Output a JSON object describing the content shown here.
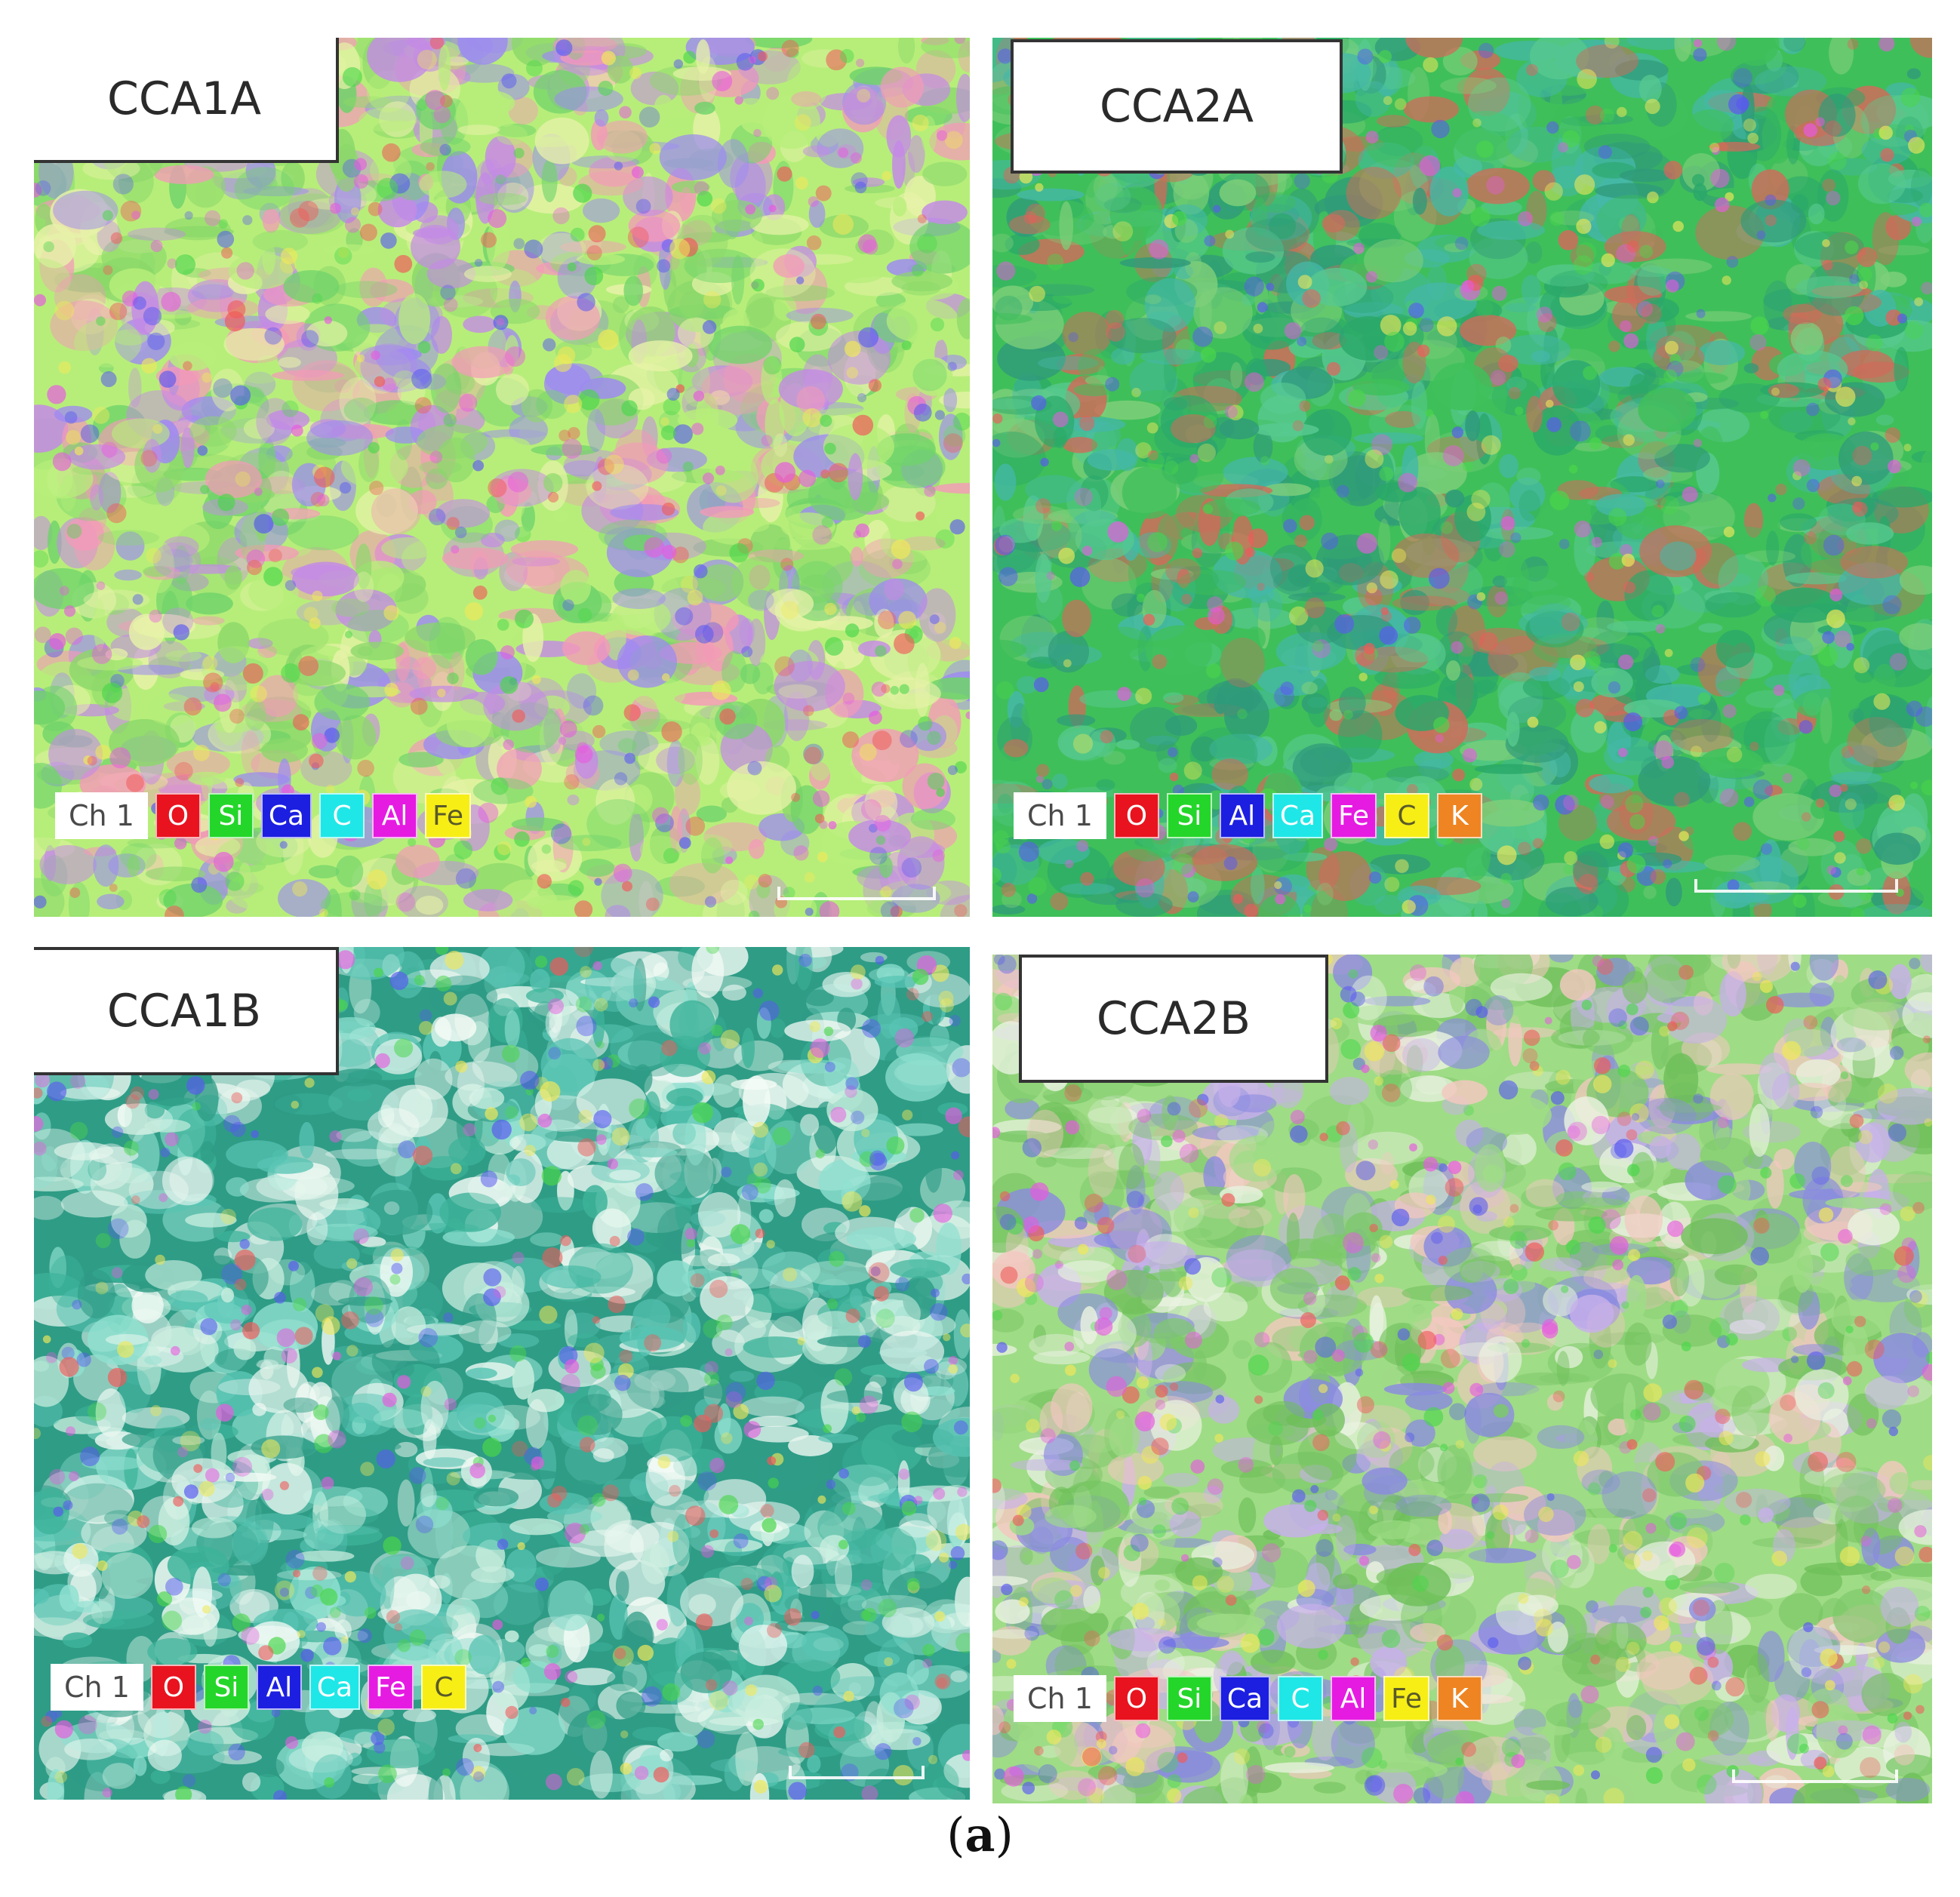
{
  "panels": [
    {
      "id": "p1",
      "title": "CCA1A",
      "legend_channel": "Ch 1",
      "legend": [
        {
          "label": "O",
          "bg": "#e8131f",
          "fg": "#ffffff"
        },
        {
          "label": "Si",
          "bg": "#24d62a",
          "fg": "#ffffff"
        },
        {
          "label": "Ca",
          "bg": "#1c1fe0",
          "fg": "#ffffff"
        },
        {
          "label": "C",
          "bg": "#1fe7e7",
          "fg": "#ffffff"
        },
        {
          "label": "Al",
          "bg": "#e51be2",
          "fg": "#ffffff"
        },
        {
          "label": "Fe",
          "bg": "#f7ee16",
          "fg": "#5a5a2a"
        }
      ],
      "palette": [
        "#b7ee7a",
        "#8bd86a",
        "#c48ae6",
        "#f49ab8",
        "#9d8af2",
        "#e7f2a8",
        "#6fd36a"
      ]
    },
    {
      "id": "p2",
      "title": "CCA2A",
      "legend_channel": "Ch 1",
      "legend": [
        {
          "label": "O",
          "bg": "#e8131f",
          "fg": "#ffffff"
        },
        {
          "label": "Si",
          "bg": "#24d62a",
          "fg": "#ffffff"
        },
        {
          "label": "Al",
          "bg": "#1c1fe0",
          "fg": "#ffffff"
        },
        {
          "label": "Ca",
          "bg": "#1fe7e7",
          "fg": "#ffffff"
        },
        {
          "label": "Fe",
          "bg": "#e51be2",
          "fg": "#ffffff"
        },
        {
          "label": "C",
          "bg": "#f7ee16",
          "fg": "#5a5a2a"
        },
        {
          "label": "K",
          "bg": "#ee8522",
          "fg": "#ffffff"
        }
      ],
      "palette": [
        "#3fbf5a",
        "#2aa86a",
        "#57c98f",
        "#45b8a8",
        "#7ecf7a",
        "#2f9a7a",
        "#d06b5a"
      ]
    },
    {
      "id": "p3",
      "title": "CCA1B",
      "legend_channel": "Ch 1",
      "legend": [
        {
          "label": "O",
          "bg": "#e8131f",
          "fg": "#ffffff"
        },
        {
          "label": "Si",
          "bg": "#24d62a",
          "fg": "#ffffff"
        },
        {
          "label": "Al",
          "bg": "#1c1fe0",
          "fg": "#ffffff"
        },
        {
          "label": "Ca",
          "bg": "#1fe7e7",
          "fg": "#ffffff"
        },
        {
          "label": "Fe",
          "bg": "#e51be2",
          "fg": "#ffffff"
        },
        {
          "label": "C",
          "bg": "#f7ee16",
          "fg": "#5a5a2a"
        }
      ],
      "palette": [
        "#2f9c86",
        "#3db39a",
        "#58c4b3",
        "#8fe0d0",
        "#e8f7ef",
        "#f4fbf6",
        "#c9eedf"
      ]
    },
    {
      "id": "p4",
      "title": "CCA2B",
      "legend_channel": "Ch 1",
      "legend": [
        {
          "label": "O",
          "bg": "#e8131f",
          "fg": "#ffffff"
        },
        {
          "label": "Si",
          "bg": "#24d62a",
          "fg": "#ffffff"
        },
        {
          "label": "Ca",
          "bg": "#1c1fe0",
          "fg": "#ffffff"
        },
        {
          "label": "C",
          "bg": "#1fe7e7",
          "fg": "#ffffff"
        },
        {
          "label": "Al",
          "bg": "#e51be2",
          "fg": "#ffffff"
        },
        {
          "label": "Fe",
          "bg": "#f7ee16",
          "fg": "#5a5a2a"
        },
        {
          "label": "K",
          "bg": "#ee8522",
          "fg": "#ffffff"
        }
      ],
      "palette": [
        "#9fdc86",
        "#7cc96a",
        "#e9f2e0",
        "#f3c8c0",
        "#8a8ae0",
        "#c7b0ea",
        "#6fbf5a"
      ]
    }
  ],
  "figure_label_open": "(",
  "figure_label_letter": "a",
  "figure_label_close": ")"
}
